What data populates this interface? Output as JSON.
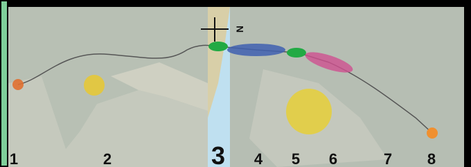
{
  "map": {
    "compass_label": "N",
    "labels": [
      "1",
      "2",
      "3",
      "4",
      "5",
      "6",
      "7",
      "8"
    ]
  }
}
